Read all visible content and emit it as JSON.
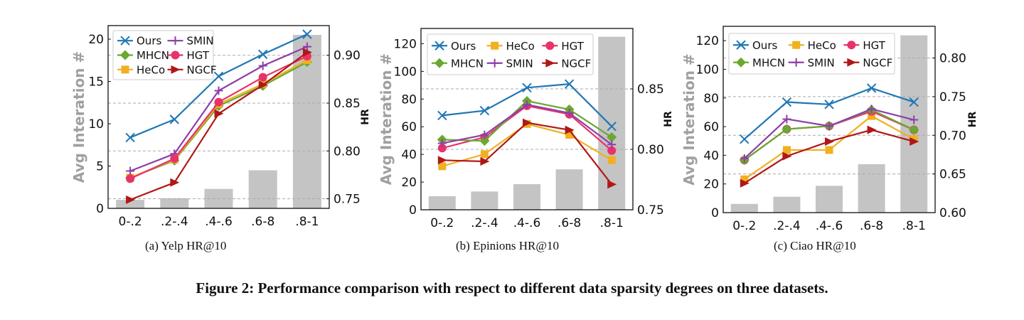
{
  "figure_caption": "Figure 2: Performance comparison with respect to different data sparsity degrees on three datasets.",
  "colors": {
    "Ours": "#1f77b4",
    "MHCN": "#6aa82e",
    "HeCo": "#f0b020",
    "SMIN": "#8e3fa8",
    "HGT": "#e8336a",
    "NGCF": "#b01818",
    "bars": "#c4c4c4",
    "grid": "#aaaaaa"
  },
  "chart_data": [
    {
      "type": "bar+line",
      "caption": "(a)  Yelp HR@10",
      "categories": [
        "0-.2",
        ".2-.4",
        ".4-.6",
        ".6-8",
        ".8-1"
      ],
      "ylabel": "Avg Interation #",
      "y2label": "HR",
      "ylim": [
        0,
        21.6
      ],
      "yticks": [
        0,
        5,
        10,
        15,
        20
      ],
      "y2lim": [
        0.74,
        0.931
      ],
      "y2ticks": [
        "0.75",
        "0.80",
        "0.85",
        "0.90"
      ],
      "grid": "dashed horizontal at HR ticks",
      "legend": "top-left",
      "bars": [
        1.0,
        1.2,
        2.3,
        4.5,
        20.5
      ],
      "series": [
        {
          "name": "Ours",
          "marker": "x",
          "values": [
            0.814,
            0.833,
            0.878,
            0.901,
            0.922
          ]
        },
        {
          "name": "MHCN",
          "marker": "diamond",
          "values": [
            0.772,
            0.79,
            0.847,
            0.868,
            0.893
          ]
        },
        {
          "name": "HeCo",
          "marker": "square",
          "values": [
            0.772,
            0.791,
            0.849,
            0.87,
            0.895
          ]
        },
        {
          "name": "SMIN",
          "marker": "plus",
          "values": [
            0.779,
            0.797,
            0.863,
            0.889,
            0.909
          ]
        },
        {
          "name": "HGT",
          "marker": "circle",
          "values": [
            0.771,
            0.792,
            0.851,
            0.877,
            0.899
          ]
        },
        {
          "name": "NGCF",
          "marker": "triangle-right",
          "values": [
            0.749,
            0.767,
            0.839,
            0.869,
            0.903
          ]
        }
      ]
    },
    {
      "type": "bar+line",
      "caption": "(b)  Epinions HR@10",
      "categories": [
        "0-.2",
        ".2-.4",
        ".4-.6",
        ".6-8",
        ".8-1"
      ],
      "ylabel": "Avg Interation #",
      "y2label": "HR",
      "ylim": [
        0,
        131
      ],
      "yticks": [
        0,
        20,
        40,
        60,
        80,
        100,
        120
      ],
      "y2lim": [
        0.75,
        0.9
      ],
      "y2ticks": [
        "0.75",
        "0.80",
        "0.85"
      ],
      "grid": "dashed horizontal at HR ticks",
      "legend": "top-left",
      "bars": [
        9.8,
        13.2,
        18.5,
        29.2,
        125
      ],
      "series": [
        {
          "name": "Ours",
          "marker": "x",
          "values": [
            0.828,
            0.832,
            0.851,
            0.854,
            0.819
          ]
        },
        {
          "name": "HeCo",
          "marker": "square",
          "values": [
            0.786,
            0.796,
            0.821,
            0.812,
            0.791
          ]
        },
        {
          "name": "HGT",
          "marker": "circle",
          "values": [
            0.801,
            0.81,
            0.836,
            0.829,
            0.799
          ]
        },
        {
          "name": "MHCN",
          "marker": "diamond",
          "values": [
            0.808,
            0.807,
            0.84,
            0.833,
            0.81
          ]
        },
        {
          "name": "SMIN",
          "marker": "plus",
          "values": [
            0.805,
            0.812,
            0.837,
            0.83,
            0.804
          ]
        },
        {
          "name": "NGCF",
          "marker": "triangle-right",
          "values": [
            0.791,
            0.79,
            0.822,
            0.816,
            0.771
          ]
        }
      ]
    },
    {
      "type": "bar+line",
      "caption": "(c)  Ciao HR@10",
      "categories": [
        "0-.2",
        ".2-.4",
        ".4-.6",
        ".6-8",
        ".8-1"
      ],
      "ylabel": "Avg Interation #",
      "y2label": "HR",
      "ylim": [
        0,
        130
      ],
      "yticks": [
        0,
        20,
        40,
        60,
        80,
        100,
        120
      ],
      "y2lim": [
        0.6,
        0.841
      ],
      "y2ticks": [
        "0.60",
        "0.65",
        "0.70",
        "0.75",
        "0.80"
      ],
      "grid": "dashed horizontal at HR ticks",
      "legend": "top-left",
      "bars": [
        6.1,
        11.1,
        18.7,
        33.8,
        123.7
      ],
      "series": [
        {
          "name": "Ours",
          "marker": "x",
          "values": [
            0.695,
            0.743,
            0.74,
            0.761,
            0.743
          ]
        },
        {
          "name": "HeCo",
          "marker": "square",
          "values": [
            0.643,
            0.681,
            0.681,
            0.725,
            0.695
          ]
        },
        {
          "name": "HGT",
          "marker": "circle",
          "values": [
            0.668,
            0.708,
            0.712,
            0.731,
            0.707
          ]
        },
        {
          "name": "MHCN",
          "marker": "diamond",
          "values": [
            0.668,
            0.708,
            0.712,
            0.733,
            0.707
          ]
        },
        {
          "name": "SMIN",
          "marker": "plus",
          "values": [
            0.67,
            0.721,
            0.712,
            0.734,
            0.72
          ]
        },
        {
          "name": "NGCF",
          "marker": "triangle-right",
          "values": [
            0.638,
            0.673,
            0.692,
            0.707,
            0.692
          ]
        }
      ]
    }
  ]
}
